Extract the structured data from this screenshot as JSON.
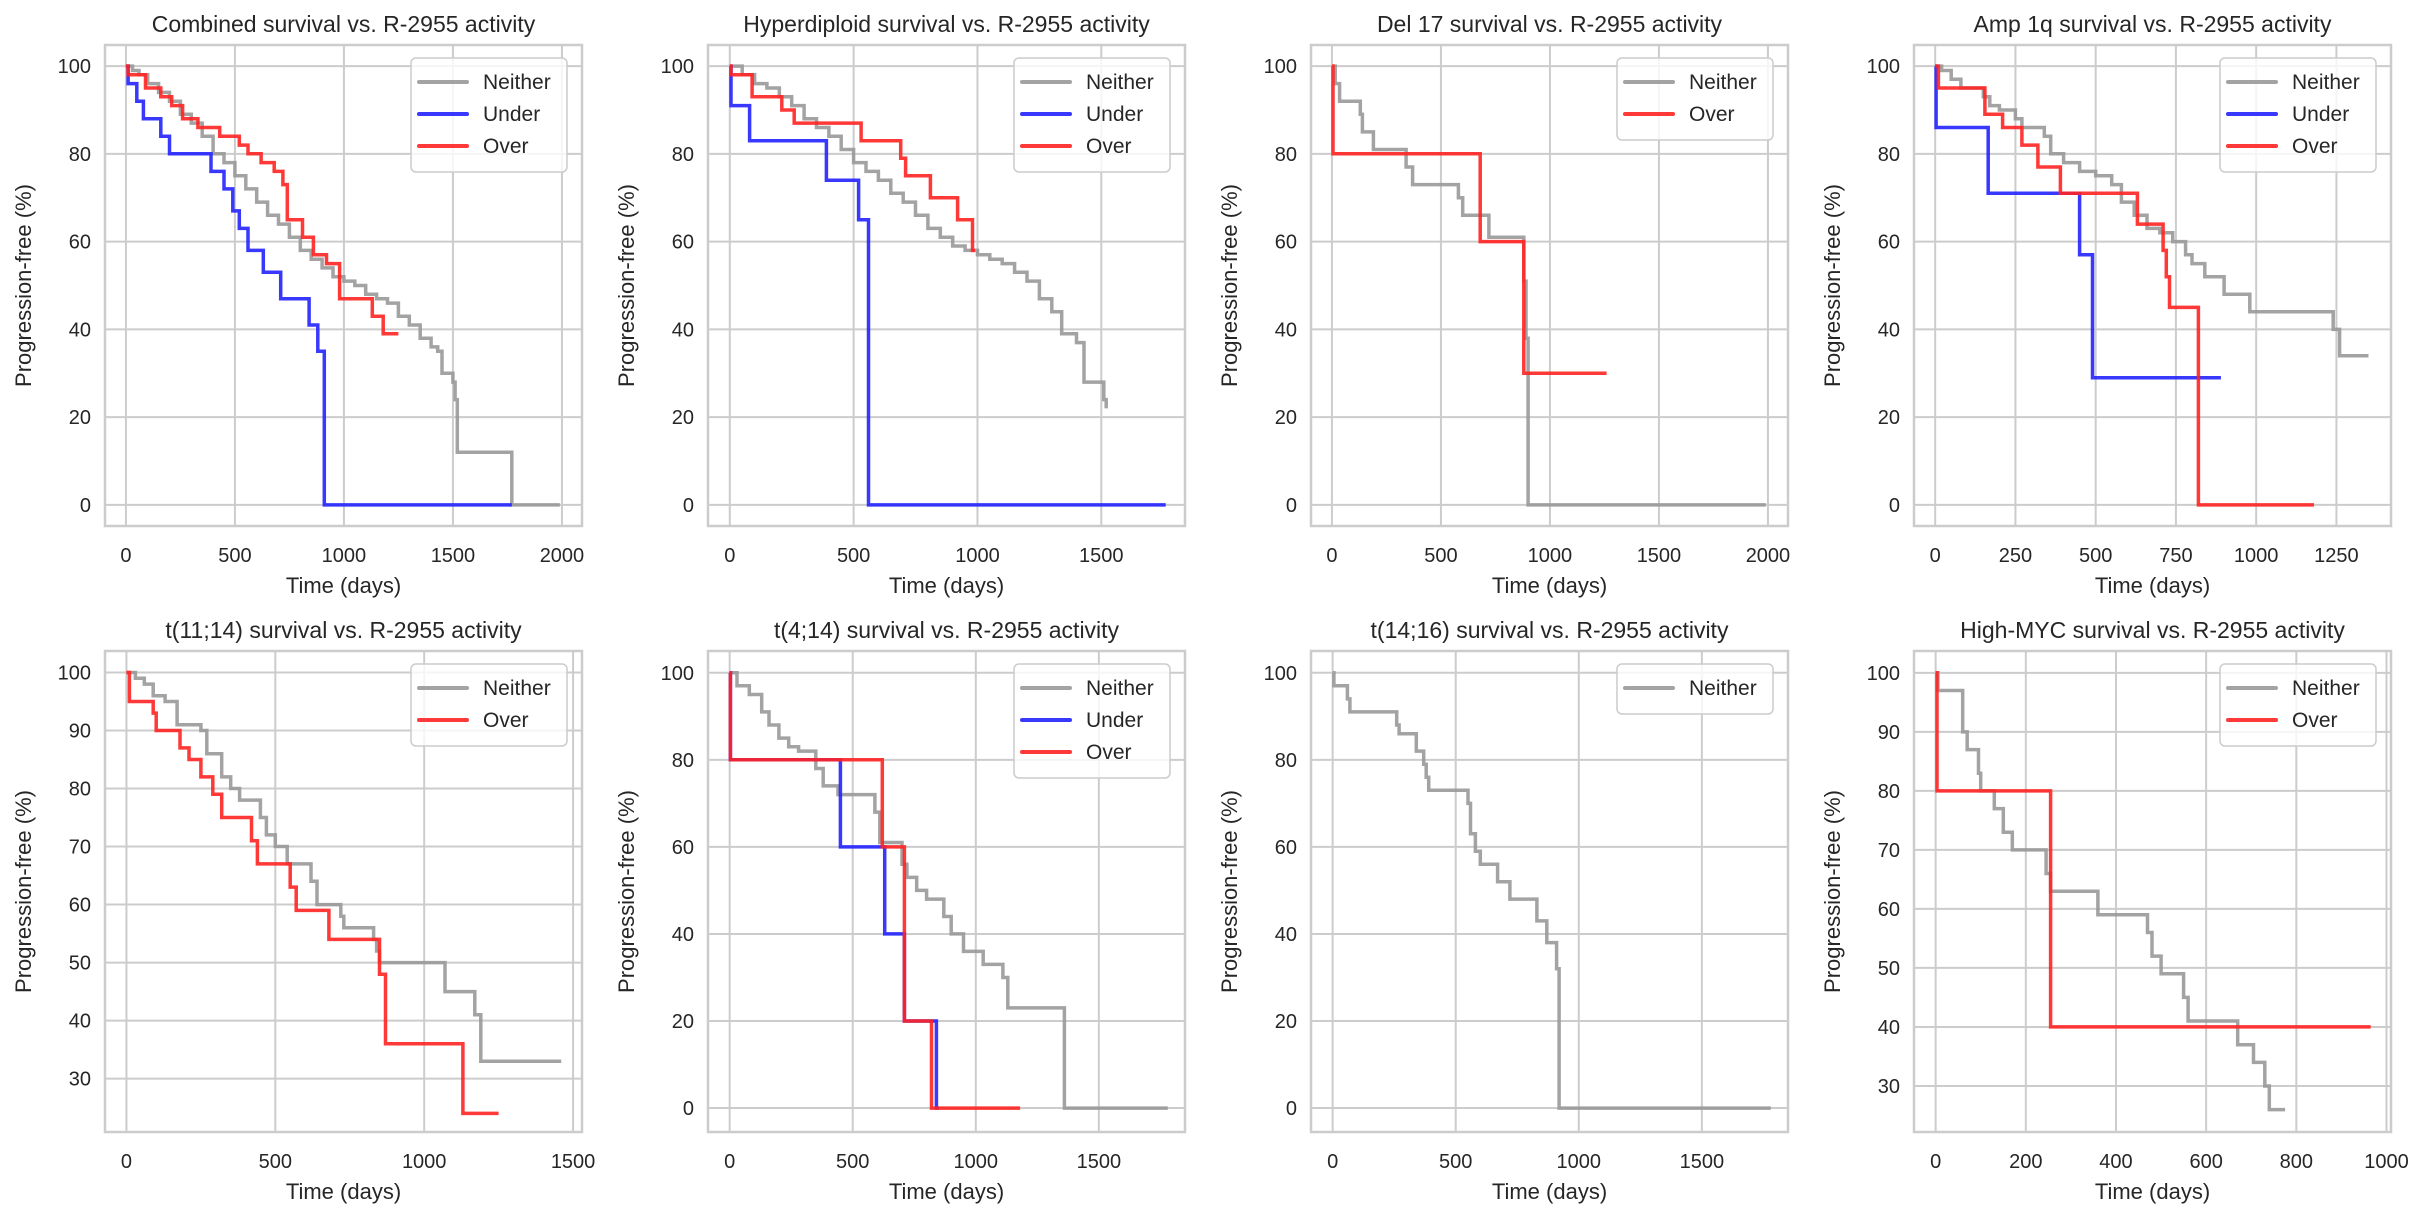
{
  "chart_data": [
    {
      "type": "line",
      "step": true,
      "title": "Combined survival vs. R-2955 activity",
      "xlabel": "Time (days)",
      "ylabel": "Progression-free (%)",
      "xlim": [
        -96,
        2092
      ],
      "ylim": [
        -4.8,
        104.8
      ],
      "xticks": [
        0,
        500,
        1000,
        1500,
        2000
      ],
      "yticks": [
        0,
        20,
        40,
        60,
        80,
        100
      ],
      "grid": true,
      "legend": "top-right",
      "series": [
        {
          "name": "Neither",
          "color": "#999999",
          "x": [
            0,
            30,
            60,
            100,
            150,
            200,
            250,
            300,
            350,
            400,
            450,
            500,
            550,
            600,
            650,
            700,
            750,
            800,
            850,
            900,
            950,
            1000,
            1050,
            1100,
            1150,
            1200,
            1250,
            1300,
            1350,
            1400,
            1430,
            1450,
            1500,
            1510,
            1520,
            1770,
            1990
          ],
          "y": [
            100,
            99,
            98,
            96,
            94,
            92,
            89,
            87,
            84,
            80,
            78,
            75,
            72,
            69,
            66,
            64,
            61,
            58,
            56,
            54,
            52,
            51,
            50,
            48,
            47,
            46,
            43,
            41,
            38,
            36,
            35,
            30,
            28,
            24,
            12,
            0,
            0
          ]
        },
        {
          "name": "Under",
          "color": "#2222ff",
          "x": [
            0,
            10,
            50,
            80,
            160,
            200,
            390,
            450,
            490,
            520,
            560,
            630,
            710,
            840,
            880,
            910,
            1770
          ],
          "y": [
            100,
            96,
            92,
            88,
            84,
            80,
            76,
            72,
            67,
            63,
            58,
            53,
            47,
            41,
            35,
            0,
            0
          ]
        },
        {
          "name": "Over",
          "color": "#ff2222",
          "x": [
            0,
            10,
            90,
            160,
            210,
            260,
            330,
            430,
            520,
            560,
            620,
            680,
            720,
            740,
            810,
            860,
            920,
            980,
            1130,
            1180,
            1250
          ],
          "y": [
            100,
            98,
            95,
            93,
            91,
            88,
            86,
            84,
            82,
            80,
            78,
            76,
            73,
            65,
            61,
            57,
            55,
            47,
            43,
            39,
            39
          ]
        }
      ]
    },
    {
      "type": "line",
      "step": true,
      "title": "Hyperdiploid survival vs. R-2955 activity",
      "xlabel": "Time (days)",
      "ylabel": "Progression-free (%)",
      "xlim": [
        -88,
        1838
      ],
      "ylim": [
        -4.8,
        104.8
      ],
      "xticks": [
        0,
        500,
        1000,
        1500
      ],
      "yticks": [
        0,
        20,
        40,
        60,
        80,
        100
      ],
      "grid": true,
      "legend": "top-right",
      "series": [
        {
          "name": "Neither",
          "color": "#999999",
          "x": [
            0,
            50,
            100,
            150,
            200,
            250,
            300,
            350,
            400,
            450,
            500,
            550,
            600,
            650,
            700,
            750,
            800,
            850,
            900,
            950,
            1000,
            1050,
            1100,
            1150,
            1200,
            1250,
            1300,
            1340,
            1400,
            1430,
            1510,
            1520
          ],
          "y": [
            100,
            98,
            96,
            95,
            93,
            91,
            88,
            86,
            84,
            81,
            78,
            76,
            74,
            71,
            69,
            66,
            63,
            61,
            59,
            58,
            57,
            56,
            55,
            53,
            51,
            47,
            44,
            39,
            37,
            28,
            24,
            22
          ]
        },
        {
          "name": "Under",
          "color": "#2222ff",
          "x": [
            0,
            5,
            80,
            390,
            520,
            560,
            1760
          ],
          "y": [
            100,
            91,
            83,
            74,
            65,
            0,
            0
          ]
        },
        {
          "name": "Over",
          "color": "#ff2222",
          "x": [
            0,
            5,
            90,
            210,
            260,
            530,
            690,
            710,
            810,
            920,
            980,
            990
          ],
          "y": [
            100,
            98,
            93,
            90,
            87,
            83,
            79,
            75,
            70,
            65,
            58,
            58
          ]
        }
      ]
    },
    {
      "type": "line",
      "step": true,
      "title": "Del 17 survival vs. R-2955 activity",
      "xlabel": "Time (days)",
      "ylabel": "Progression-free (%)",
      "xlim": [
        -96,
        2092
      ],
      "ylim": [
        -4.8,
        104.8
      ],
      "xticks": [
        0,
        500,
        1000,
        1500,
        2000
      ],
      "yticks": [
        0,
        20,
        40,
        60,
        80,
        100
      ],
      "grid": true,
      "legend": "top-right",
      "series": [
        {
          "name": "Neither",
          "color": "#999999",
          "x": [
            0,
            15,
            35,
            130,
            140,
            190,
            340,
            370,
            580,
            600,
            720,
            880,
            890,
            900,
            1990
          ],
          "y": [
            100,
            96,
            92,
            89,
            85,
            81,
            77,
            73,
            70,
            66,
            61,
            51,
            38,
            0,
            0
          ]
        },
        {
          "name": "Over",
          "color": "#ff2222",
          "x": [
            0,
            5,
            680,
            880,
            1260
          ],
          "y": [
            100,
            80,
            60,
            30,
            30
          ]
        }
      ]
    },
    {
      "type": "line",
      "step": true,
      "title": "Amp 1q survival vs. R-2955 activity",
      "xlabel": "Time (days)",
      "ylabel": "Progression-free (%)",
      "xlim": [
        -66,
        1420
      ],
      "ylim": [
        -4.8,
        104.8
      ],
      "xticks": [
        0,
        250,
        500,
        750,
        1000,
        1250
      ],
      "yticks": [
        0,
        20,
        40,
        60,
        80,
        100
      ],
      "grid": true,
      "legend": "top-right",
      "series": [
        {
          "name": "Neither",
          "color": "#999999",
          "x": [
            0,
            20,
            50,
            80,
            150,
            170,
            200,
            250,
            270,
            340,
            360,
            400,
            450,
            500,
            550,
            580,
            620,
            660,
            700,
            740,
            780,
            800,
            840,
            900,
            980,
            1240,
            1260,
            1350
          ],
          "y": [
            100,
            99,
            97,
            95,
            93,
            91,
            90,
            88,
            86,
            84,
            80,
            78,
            76,
            75,
            73,
            69,
            66,
            63,
            62,
            60,
            57,
            55,
            52,
            48,
            44,
            40,
            34,
            34
          ]
        },
        {
          "name": "Under",
          "color": "#2222ff",
          "x": [
            0,
            3,
            165,
            450,
            490,
            890
          ],
          "y": [
            100,
            86,
            71,
            57,
            29,
            29
          ]
        },
        {
          "name": "Over",
          "color": "#ff2222",
          "x": [
            0,
            10,
            155,
            210,
            270,
            320,
            390,
            630,
            710,
            720,
            730,
            820,
            1180
          ],
          "y": [
            100,
            95,
            89,
            86,
            82,
            77,
            71,
            64,
            58,
            52,
            45,
            0,
            0
          ]
        }
      ]
    },
    {
      "type": "line",
      "step": true,
      "title": "t(11;14) survival vs. R-2955 activity",
      "xlabel": "Time (days)",
      "ylabel": "Progression-free (%)",
      "xlim": [
        -72,
        1530
      ],
      "ylim": [
        20.8,
        103.7
      ],
      "xticks": [
        0,
        500,
        1000,
        1500
      ],
      "yticks": [
        30,
        40,
        50,
        60,
        70,
        80,
        90,
        100
      ],
      "grid": true,
      "legend": "top-right",
      "series": [
        {
          "name": "Neither",
          "color": "#999999",
          "x": [
            0,
            30,
            60,
            90,
            130,
            170,
            250,
            270,
            320,
            350,
            380,
            450,
            470,
            500,
            540,
            620,
            640,
            720,
            730,
            830,
            840,
            850,
            1070,
            1170,
            1190,
            1460
          ],
          "y": [
            100,
            99,
            98,
            96,
            95,
            91,
            90,
            86,
            82,
            80,
            78,
            75,
            72,
            70,
            67,
            64,
            60,
            58,
            56,
            54,
            52,
            50,
            45,
            41,
            33,
            33
          ]
        },
        {
          "name": "Over",
          "color": "#ff2222",
          "x": [
            0,
            10,
            90,
            100,
            180,
            210,
            250,
            290,
            320,
            420,
            440,
            550,
            570,
            680,
            850,
            870,
            1130,
            1250
          ],
          "y": [
            100,
            95,
            93,
            90,
            87,
            85,
            82,
            79,
            75,
            71,
            67,
            63,
            59,
            54,
            48,
            36,
            24,
            24
          ]
        }
      ]
    },
    {
      "type": "line",
      "step": true,
      "title": "t(4;14) survival vs. R-2955 activity",
      "xlabel": "Time (days)",
      "ylabel": "Progression-free (%)",
      "xlim": [
        -88,
        1850
      ],
      "ylim": [
        -5.5,
        105
      ],
      "xticks": [
        0,
        500,
        1000,
        1500
      ],
      "yticks": [
        0,
        20,
        40,
        60,
        80,
        100
      ],
      "grid": true,
      "legend": "top-right",
      "series": [
        {
          "name": "Neither",
          "color": "#999999",
          "x": [
            0,
            30,
            80,
            130,
            160,
            200,
            240,
            280,
            350,
            380,
            440,
            590,
            610,
            700,
            720,
            760,
            800,
            870,
            900,
            950,
            1030,
            1110,
            1130,
            1360,
            1780
          ],
          "y": [
            100,
            97,
            95,
            91,
            88,
            85,
            83,
            82,
            78,
            74,
            72,
            68,
            61,
            56,
            53,
            50,
            48,
            44,
            40,
            36,
            33,
            30,
            23,
            0,
            0
          ]
        },
        {
          "name": "Under",
          "color": "#2222ff",
          "x": [
            0,
            3,
            450,
            630,
            710,
            840,
            850
          ],
          "y": [
            100,
            80,
            60,
            40,
            20,
            0,
            0
          ]
        },
        {
          "name": "Over",
          "color": "#ff2222",
          "x": [
            0,
            3,
            620,
            710,
            820,
            1180
          ],
          "y": [
            100,
            80,
            60,
            20,
            0,
            0
          ]
        }
      ]
    },
    {
      "type": "line",
      "step": true,
      "title": "t(14;16) survival vs. R-2955 activity",
      "xlabel": "Time (days)",
      "ylabel": "Progression-free (%)",
      "xlim": [
        -88,
        1850
      ],
      "ylim": [
        -5.5,
        105
      ],
      "xticks": [
        0,
        500,
        1000,
        1500
      ],
      "yticks": [
        0,
        20,
        40,
        60,
        80,
        100
      ],
      "grid": true,
      "legend": "top-right",
      "series": [
        {
          "name": "Neither",
          "color": "#999999",
          "x": [
            0,
            5,
            60,
            70,
            260,
            270,
            340,
            370,
            380,
            390,
            550,
            560,
            580,
            600,
            670,
            720,
            830,
            870,
            910,
            920,
            1780
          ],
          "y": [
            100,
            97,
            94,
            91,
            88,
            86,
            82,
            79,
            76,
            73,
            70,
            63,
            59,
            56,
            52,
            48,
            43,
            38,
            32,
            0,
            0
          ]
        }
      ]
    },
    {
      "type": "line",
      "step": true,
      "title": "High-MYC survival vs. R-2955 activity",
      "xlabel": "Time (days)",
      "ylabel": "Progression-free (%)",
      "xlim": [
        -48,
        1010
      ],
      "ylim": [
        22.2,
        103.7
      ],
      "xticks": [
        0,
        200,
        400,
        600,
        800,
        1000
      ],
      "yticks": [
        30,
        40,
        50,
        60,
        70,
        80,
        90,
        100
      ],
      "grid": true,
      "legend": "top-right",
      "series": [
        {
          "name": "Neither",
          "color": "#999999",
          "x": [
            0,
            5,
            60,
            70,
            95,
            100,
            130,
            150,
            170,
            245,
            255,
            260,
            360,
            470,
            480,
            500,
            550,
            560,
            670,
            705,
            730,
            740,
            775
          ],
          "y": [
            100,
            97,
            90,
            87,
            83,
            80,
            77,
            73,
            70,
            66,
            63,
            63,
            59,
            56,
            52,
            49,
            45,
            41,
            37,
            34,
            30,
            26,
            26
          ]
        },
        {
          "name": "Over",
          "color": "#ff2222",
          "x": [
            0,
            3,
            255,
            965
          ],
          "y": [
            100,
            80,
            40,
            40
          ]
        }
      ]
    }
  ]
}
